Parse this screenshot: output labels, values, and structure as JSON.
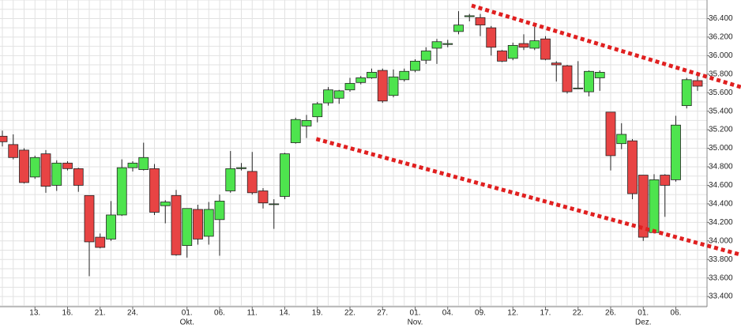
{
  "chart_data": {
    "type": "candlestick",
    "categories": [
      null,
      null,
      null,
      "13.",
      null,
      null,
      "16.",
      null,
      null,
      "21.",
      null,
      null,
      "24.",
      null,
      null,
      null,
      null,
      "01.",
      null,
      null,
      "06.",
      null,
      null,
      "11.",
      null,
      null,
      "14.",
      null,
      null,
      "19.",
      null,
      null,
      "22.",
      null,
      null,
      "27.",
      null,
      null,
      "01.",
      null,
      null,
      "04.",
      null,
      null,
      "09.",
      null,
      null,
      "12.",
      null,
      null,
      "17.",
      null,
      null,
      "22.",
      null,
      null,
      "26.",
      null,
      null,
      "01.",
      null,
      null,
      "06.",
      null,
      null
    ],
    "subcategories": [
      null,
      null,
      null,
      null,
      null,
      null,
      null,
      null,
      null,
      null,
      null,
      null,
      null,
      null,
      null,
      null,
      null,
      "Okt.",
      null,
      null,
      null,
      null,
      null,
      null,
      null,
      null,
      null,
      null,
      null,
      null,
      null,
      null,
      null,
      null,
      null,
      null,
      null,
      null,
      "Nov.",
      null,
      null,
      null,
      null,
      null,
      null,
      null,
      null,
      null,
      null,
      null,
      null,
      null,
      null,
      null,
      null,
      null,
      null,
      null,
      null,
      "Dez.",
      null,
      null,
      null,
      null,
      null
    ],
    "open": [
      35.13,
      35.04,
      34.98,
      34.69,
      34.94,
      34.6,
      34.84,
      34.78,
      34.49,
      34.04,
      34.02,
      34.28,
      34.79,
      34.77,
      34.78,
      34.38,
      34.49,
      33.95,
      34.34,
      34.05,
      34.23,
      34.54,
      34.78,
      34.75,
      34.54,
      34.4,
      34.48,
      35.06,
      35.24,
      35.34,
      35.49,
      35.54,
      35.63,
      35.71,
      35.76,
      35.84,
      35.57,
      35.74,
      35.84,
      35.95,
      36.08,
      36.12,
      36.26,
      36.42,
      36.41,
      36.3,
      36.05,
      35.97,
      36.13,
      36.08,
      36.18,
      35.92,
      35.89,
      35.65,
      35.61,
      35.76,
      35.39,
      35.05,
      35.08,
      34.71,
      34.09,
      34.71,
      34.66,
      35.46,
      35.73
    ],
    "high": [
      35.19,
      35.15,
      35.0,
      34.92,
      34.98,
      34.87,
      34.86,
      34.79,
      34.49,
      34.08,
      34.43,
      34.88,
      34.86,
      35.06,
      34.83,
      34.44,
      34.55,
      34.35,
      34.39,
      34.42,
      34.5,
      34.97,
      34.84,
      34.96,
      34.57,
      34.45,
      34.95,
      35.33,
      35.36,
      35.5,
      35.66,
      35.63,
      35.76,
      35.78,
      35.86,
      35.86,
      35.85,
      35.86,
      35.96,
      36.09,
      36.18,
      36.17,
      36.48,
      36.45,
      36.45,
      36.32,
      36.06,
      36.14,
      36.23,
      36.31,
      36.21,
      35.94,
      35.9,
      35.94,
      35.84,
      35.84,
      35.39,
      35.27,
      35.1,
      34.71,
      34.72,
      34.72,
      35.35,
      35.76,
      35.79
    ],
    "low": [
      35.02,
      34.88,
      34.62,
      34.67,
      34.52,
      34.54,
      34.76,
      34.53,
      33.62,
      33.92,
      34.0,
      34.27,
      34.75,
      34.76,
      34.28,
      34.19,
      33.84,
      33.82,
      33.96,
      33.96,
      33.84,
      34.52,
      34.76,
      34.5,
      34.35,
      34.13,
      34.45,
      35.05,
      35.11,
      35.28,
      35.46,
      35.48,
      35.61,
      35.69,
      35.75,
      35.49,
      35.55,
      35.72,
      35.82,
      35.91,
      35.91,
      36.09,
      36.23,
      36.37,
      36.21,
      36.0,
      35.93,
      35.95,
      36.06,
      36.06,
      35.95,
      35.72,
      35.59,
      35.64,
      35.56,
      35.62,
      34.76,
      34.99,
      34.45,
      34.0,
      34.08,
      34.26,
      34.64,
      35.43,
      35.62
    ],
    "close": [
      35.07,
      34.9,
      34.63,
      34.9,
      34.59,
      34.84,
      34.78,
      34.6,
      33.99,
      33.93,
      34.28,
      34.79,
      34.84,
      34.9,
      34.31,
      34.42,
      33.85,
      34.35,
      34.02,
      34.34,
      34.43,
      34.78,
      34.79,
      34.52,
      34.41,
      34.4,
      34.94,
      35.31,
      35.3,
      35.48,
      35.63,
      35.62,
      35.7,
      35.76,
      35.82,
      35.51,
      35.77,
      35.83,
      35.94,
      36.05,
      36.15,
      36.13,
      36.33,
      36.43,
      36.33,
      36.09,
      35.94,
      36.11,
      36.09,
      36.16,
      35.96,
      35.9,
      35.61,
      35.65,
      35.83,
      35.82,
      34.92,
      35.15,
      34.51,
      34.04,
      34.66,
      34.6,
      35.25,
      35.74,
      35.67
    ],
    "up_color": "#4ee44e",
    "down_color": "#e84444",
    "ylim": [
      33.29,
      36.6
    ],
    "yticks": [
      {
        "value": 33.4,
        "label": "33.400"
      },
      {
        "value": 33.6,
        "label": "33.600"
      },
      {
        "value": 33.8,
        "label": "33.800"
      },
      {
        "value": 34.0,
        "label": "34.000"
      },
      {
        "value": 34.2,
        "label": "34.200"
      },
      {
        "value": 34.4,
        "label": "34.400"
      },
      {
        "value": 34.6,
        "label": "34.600"
      },
      {
        "value": 34.8,
        "label": "34.800"
      },
      {
        "value": 35.0,
        "label": "35.000"
      },
      {
        "value": 35.2,
        "label": "35.200"
      },
      {
        "value": 35.4,
        "label": "35.400"
      },
      {
        "value": 35.6,
        "label": "35.600"
      },
      {
        "value": 35.8,
        "label": "35.800"
      },
      {
        "value": 36.0,
        "label": "36.000"
      },
      {
        "value": 36.2,
        "label": "36.200"
      },
      {
        "value": 36.4,
        "label": "36.400"
      }
    ],
    "y_gridlines": [
      33.3,
      33.4,
      33.5,
      33.6,
      33.7,
      33.8,
      33.9,
      34.0,
      34.1,
      34.2,
      34.3,
      34.4,
      34.5,
      34.6,
      34.7,
      34.8,
      34.9,
      35.0,
      35.1,
      35.2,
      35.3,
      35.4,
      35.5,
      35.6,
      35.7,
      35.8,
      35.9,
      36.0,
      36.1,
      36.2,
      36.3,
      36.4,
      36.5,
      36.6
    ],
    "grid": true,
    "trendlines": [
      {
        "x": [
          43.2,
          68
        ],
        "y": [
          36.54,
          35.66
        ],
        "color": "#e02020"
      },
      {
        "x": [
          28.9,
          68
        ],
        "y": [
          35.1,
          33.85
        ],
        "color": "#e02020"
      }
    ]
  }
}
